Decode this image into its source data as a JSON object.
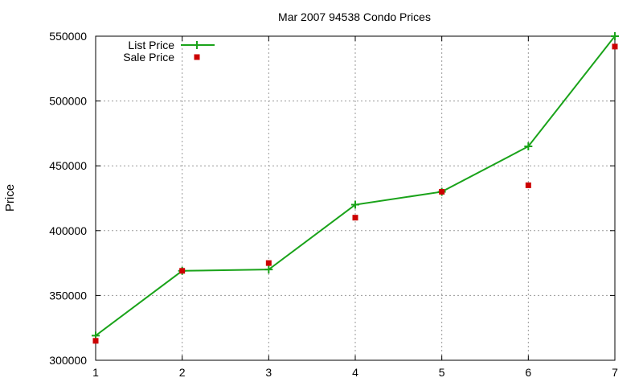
{
  "chart_data": {
    "type": "line",
    "title": "Mar 2007 94538 Condo Prices",
    "xlabel": "",
    "ylabel": "Price",
    "x": [
      1,
      2,
      3,
      4,
      5,
      6,
      7
    ],
    "xlim": [
      1,
      7
    ],
    "ylim": [
      300000,
      550000
    ],
    "xticks": [
      "1",
      "2",
      "3",
      "4",
      "5",
      "6",
      "7"
    ],
    "yticks": [
      "300000",
      "350000",
      "400000",
      "450000",
      "500000",
      "550000"
    ],
    "grid": true,
    "legend_position": "top-left",
    "series": [
      {
        "name": "List Price",
        "style": "line with plus markers",
        "color": "#1aa31a",
        "values": [
          319000,
          369000,
          370000,
          420000,
          430000,
          465000,
          550000
        ]
      },
      {
        "name": "Sale Price",
        "style": "square points",
        "color": "#cc0000",
        "values": [
          315000,
          369000,
          375000,
          410000,
          430000,
          435000,
          542000
        ]
      }
    ]
  }
}
